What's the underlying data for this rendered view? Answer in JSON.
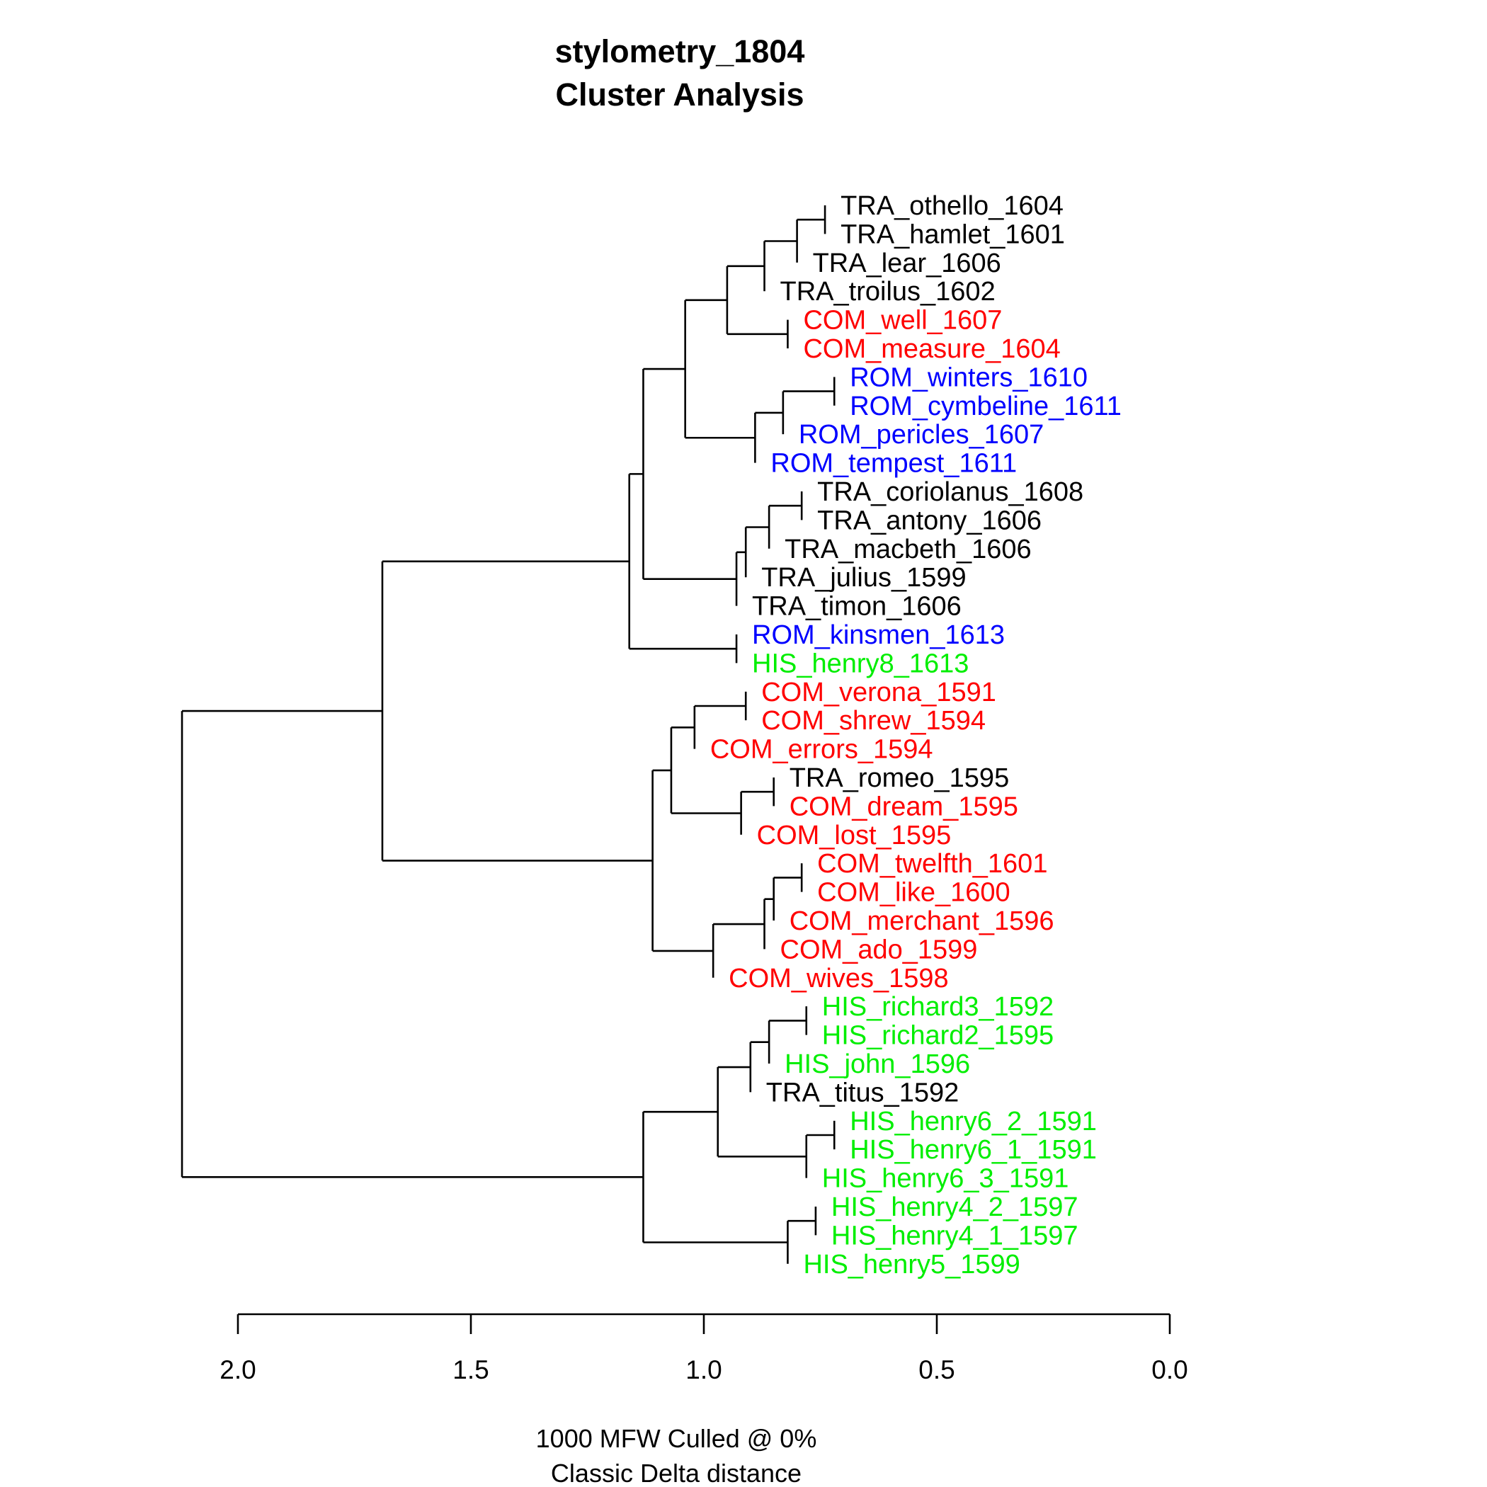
{
  "chart_data": {
    "type": "dendrogram",
    "title": "stylometry_1804",
    "subtitle": "Cluster Analysis",
    "xlabel_line1": "1000 MFW  Culled @ 0%",
    "xlabel_line2": "Classic Delta distance",
    "xlim": [
      2.0,
      0.0
    ],
    "x_ticks": [
      2.0,
      1.5,
      1.0,
      0.5,
      0.0
    ],
    "x_tick_labels": [
      "2.0",
      "1.5",
      "1.0",
      "0.5",
      "0.0"
    ],
    "colors": {
      "TRA": "#000000",
      "COM": "#ff0000",
      "ROM": "#0000ff",
      "HIS": "#00ee00"
    },
    "leaves": [
      {
        "label": "TRA_othello_1604",
        "group": "TRA"
      },
      {
        "label": "TRA_hamlet_1601",
        "group": "TRA"
      },
      {
        "label": "TRA_lear_1606",
        "group": "TRA"
      },
      {
        "label": "TRA_troilus_1602",
        "group": "TRA"
      },
      {
        "label": "COM_well_1607",
        "group": "COM"
      },
      {
        "label": "COM_measure_1604",
        "group": "COM"
      },
      {
        "label": "ROM_winters_1610",
        "group": "ROM"
      },
      {
        "label": "ROM_cymbeline_1611",
        "group": "ROM"
      },
      {
        "label": "ROM_pericles_1607",
        "group": "ROM"
      },
      {
        "label": "ROM_tempest_1611",
        "group": "ROM"
      },
      {
        "label": "TRA_coriolanus_1608",
        "group": "TRA"
      },
      {
        "label": "TRA_antony_1606",
        "group": "TRA"
      },
      {
        "label": "TRA_macbeth_1606",
        "group": "TRA"
      },
      {
        "label": "TRA_julius_1599",
        "group": "TRA"
      },
      {
        "label": "TRA_timon_1606",
        "group": "TRA"
      },
      {
        "label": "ROM_kinsmen_1613",
        "group": "ROM"
      },
      {
        "label": "HIS_henry8_1613",
        "group": "HIS"
      },
      {
        "label": "COM_verona_1591",
        "group": "COM"
      },
      {
        "label": "COM_shrew_1594",
        "group": "COM"
      },
      {
        "label": "COM_errors_1594",
        "group": "COM"
      },
      {
        "label": "TRA_romeo_1595",
        "group": "TRA"
      },
      {
        "label": "COM_dream_1595",
        "group": "COM"
      },
      {
        "label": "COM_lost_1595",
        "group": "COM"
      },
      {
        "label": "COM_twelfth_1601",
        "group": "COM"
      },
      {
        "label": "COM_like_1600",
        "group": "COM"
      },
      {
        "label": "COM_merchant_1596",
        "group": "COM"
      },
      {
        "label": "COM_ado_1599",
        "group": "COM"
      },
      {
        "label": "COM_wives_1598",
        "group": "COM"
      },
      {
        "label": "HIS_richard3_1592",
        "group": "HIS"
      },
      {
        "label": "HIS_richard2_1595",
        "group": "HIS"
      },
      {
        "label": "HIS_john_1596",
        "group": "HIS"
      },
      {
        "label": "TRA_titus_1592",
        "group": "TRA"
      },
      {
        "label": "HIS_henry6_2_1591",
        "group": "HIS"
      },
      {
        "label": "HIS_henry6_1_1591",
        "group": "HIS"
      },
      {
        "label": "HIS_henry6_3_1591",
        "group": "HIS"
      },
      {
        "label": "HIS_henry4_2_1597",
        "group": "HIS"
      },
      {
        "label": "HIS_henry4_1_1597",
        "group": "HIS"
      },
      {
        "label": "HIS_henry5_1599",
        "group": "HIS"
      }
    ],
    "merges": [
      {
        "id": "n1",
        "children": [
          0,
          1
        ],
        "height": 0.74
      },
      {
        "id": "n2",
        "children": [
          "n1",
          2
        ],
        "height": 0.8
      },
      {
        "id": "n3",
        "children": [
          "n2",
          3
        ],
        "height": 0.87
      },
      {
        "id": "n4",
        "children": [
          4,
          5
        ],
        "height": 0.82
      },
      {
        "id": "n5",
        "children": [
          "n3",
          "n4"
        ],
        "height": 0.95
      },
      {
        "id": "n6",
        "children": [
          6,
          7
        ],
        "height": 0.72
      },
      {
        "id": "n7",
        "children": [
          "n6",
          8
        ],
        "height": 0.83
      },
      {
        "id": "n8",
        "children": [
          "n7",
          9
        ],
        "height": 0.89
      },
      {
        "id": "n9",
        "children": [
          "n5",
          "n8"
        ],
        "height": 1.04
      },
      {
        "id": "n10",
        "children": [
          10,
          11
        ],
        "height": 0.79
      },
      {
        "id": "n11",
        "children": [
          "n10",
          12
        ],
        "height": 0.86
      },
      {
        "id": "n12",
        "children": [
          "n11",
          13
        ],
        "height": 0.91
      },
      {
        "id": "n13",
        "children": [
          "n12",
          14
        ],
        "height": 0.93
      },
      {
        "id": "n14",
        "children": [
          "n9",
          "n13"
        ],
        "height": 1.13
      },
      {
        "id": "n15",
        "children": [
          15,
          16
        ],
        "height": 0.93
      },
      {
        "id": "n16",
        "children": [
          "n14",
          "n15"
        ],
        "height": 1.16
      },
      {
        "id": "n17",
        "children": [
          17,
          18
        ],
        "height": 0.91
      },
      {
        "id": "n18",
        "children": [
          "n17",
          19
        ],
        "height": 1.02
      },
      {
        "id": "n19",
        "children": [
          20,
          21
        ],
        "height": 0.85
      },
      {
        "id": "n20",
        "children": [
          "n19",
          22
        ],
        "height": 0.92
      },
      {
        "id": "n21",
        "children": [
          "n18",
          "n20"
        ],
        "height": 1.07
      },
      {
        "id": "n22",
        "children": [
          23,
          24
        ],
        "height": 0.79
      },
      {
        "id": "n23",
        "children": [
          "n22",
          25
        ],
        "height": 0.85
      },
      {
        "id": "n24",
        "children": [
          "n23",
          26
        ],
        "height": 0.87
      },
      {
        "id": "n25",
        "children": [
          "n24",
          27
        ],
        "height": 0.98
      },
      {
        "id": "n26",
        "children": [
          "n21",
          "n25"
        ],
        "height": 1.11
      },
      {
        "id": "n27",
        "children": [
          "n16",
          "n26"
        ],
        "height": 1.69
      },
      {
        "id": "n28",
        "children": [
          28,
          29
        ],
        "height": 0.78
      },
      {
        "id": "n29",
        "children": [
          "n28",
          30
        ],
        "height": 0.86
      },
      {
        "id": "n30",
        "children": [
          "n29",
          31
        ],
        "height": 0.9
      },
      {
        "id": "n31",
        "children": [
          32,
          33
        ],
        "height": 0.72
      },
      {
        "id": "n32",
        "children": [
          "n31",
          34
        ],
        "height": 0.78
      },
      {
        "id": "n33",
        "children": [
          "n30",
          "n32"
        ],
        "height": 0.97
      },
      {
        "id": "n34",
        "children": [
          35,
          36
        ],
        "height": 0.76
      },
      {
        "id": "n35",
        "children": [
          "n34",
          37
        ],
        "height": 0.82
      },
      {
        "id": "n36",
        "children": [
          "n33",
          "n35"
        ],
        "height": 1.13
      },
      {
        "id": "n37",
        "children": [
          "n27",
          "n36"
        ],
        "height": 2.12
      }
    ]
  }
}
